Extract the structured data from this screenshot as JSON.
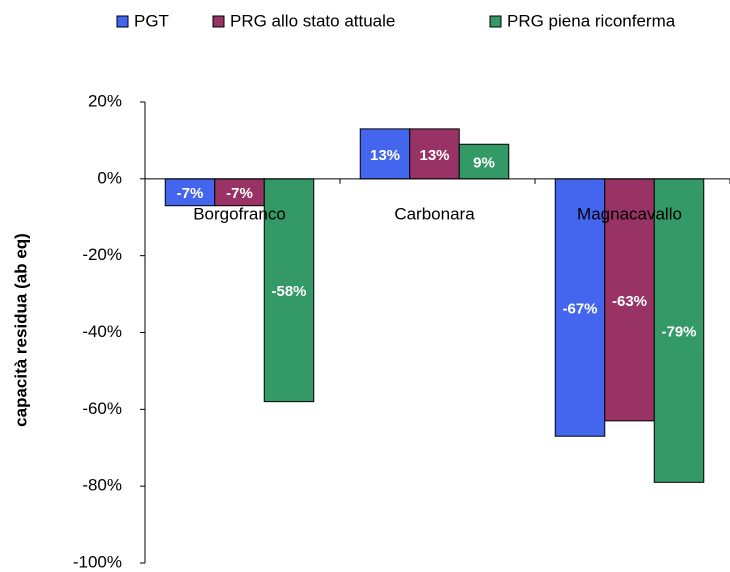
{
  "chart_data": {
    "type": "bar",
    "y_label": "capacità residua (ab eq)",
    "categories": [
      "Borgofranco",
      "Carbonara",
      "Magnacavallo"
    ],
    "series": [
      {
        "name": "PGT",
        "color": "#4466ee",
        "values": [
          -7,
          13,
          -67
        ],
        "value_labels": [
          "-7%",
          "13%",
          "-67%"
        ]
      },
      {
        "name": "PRG allo stato attuale",
        "color": "#993366",
        "values": [
          -7,
          13,
          -63
        ],
        "value_labels": [
          "-7%",
          "13%",
          "-63%"
        ]
      },
      {
        "name": "PRG piena riconferma",
        "color": "#339966",
        "values": [
          -58,
          9,
          -79
        ],
        "value_labels": [
          "-58%",
          "9%",
          "-79%"
        ]
      }
    ],
    "ylim": [
      -100,
      20
    ],
    "yticks": [
      {
        "value": -100,
        "label": "-100%"
      },
      {
        "value": -80,
        "label": "-80%"
      },
      {
        "value": -60,
        "label": "-60%"
      },
      {
        "value": -40,
        "label": "-40%"
      },
      {
        "value": -20,
        "label": "-20%"
      },
      {
        "value": 0,
        "label": "0%"
      },
      {
        "value": 20,
        "label": "20%"
      }
    ],
    "grid": false,
    "legend": "top"
  }
}
